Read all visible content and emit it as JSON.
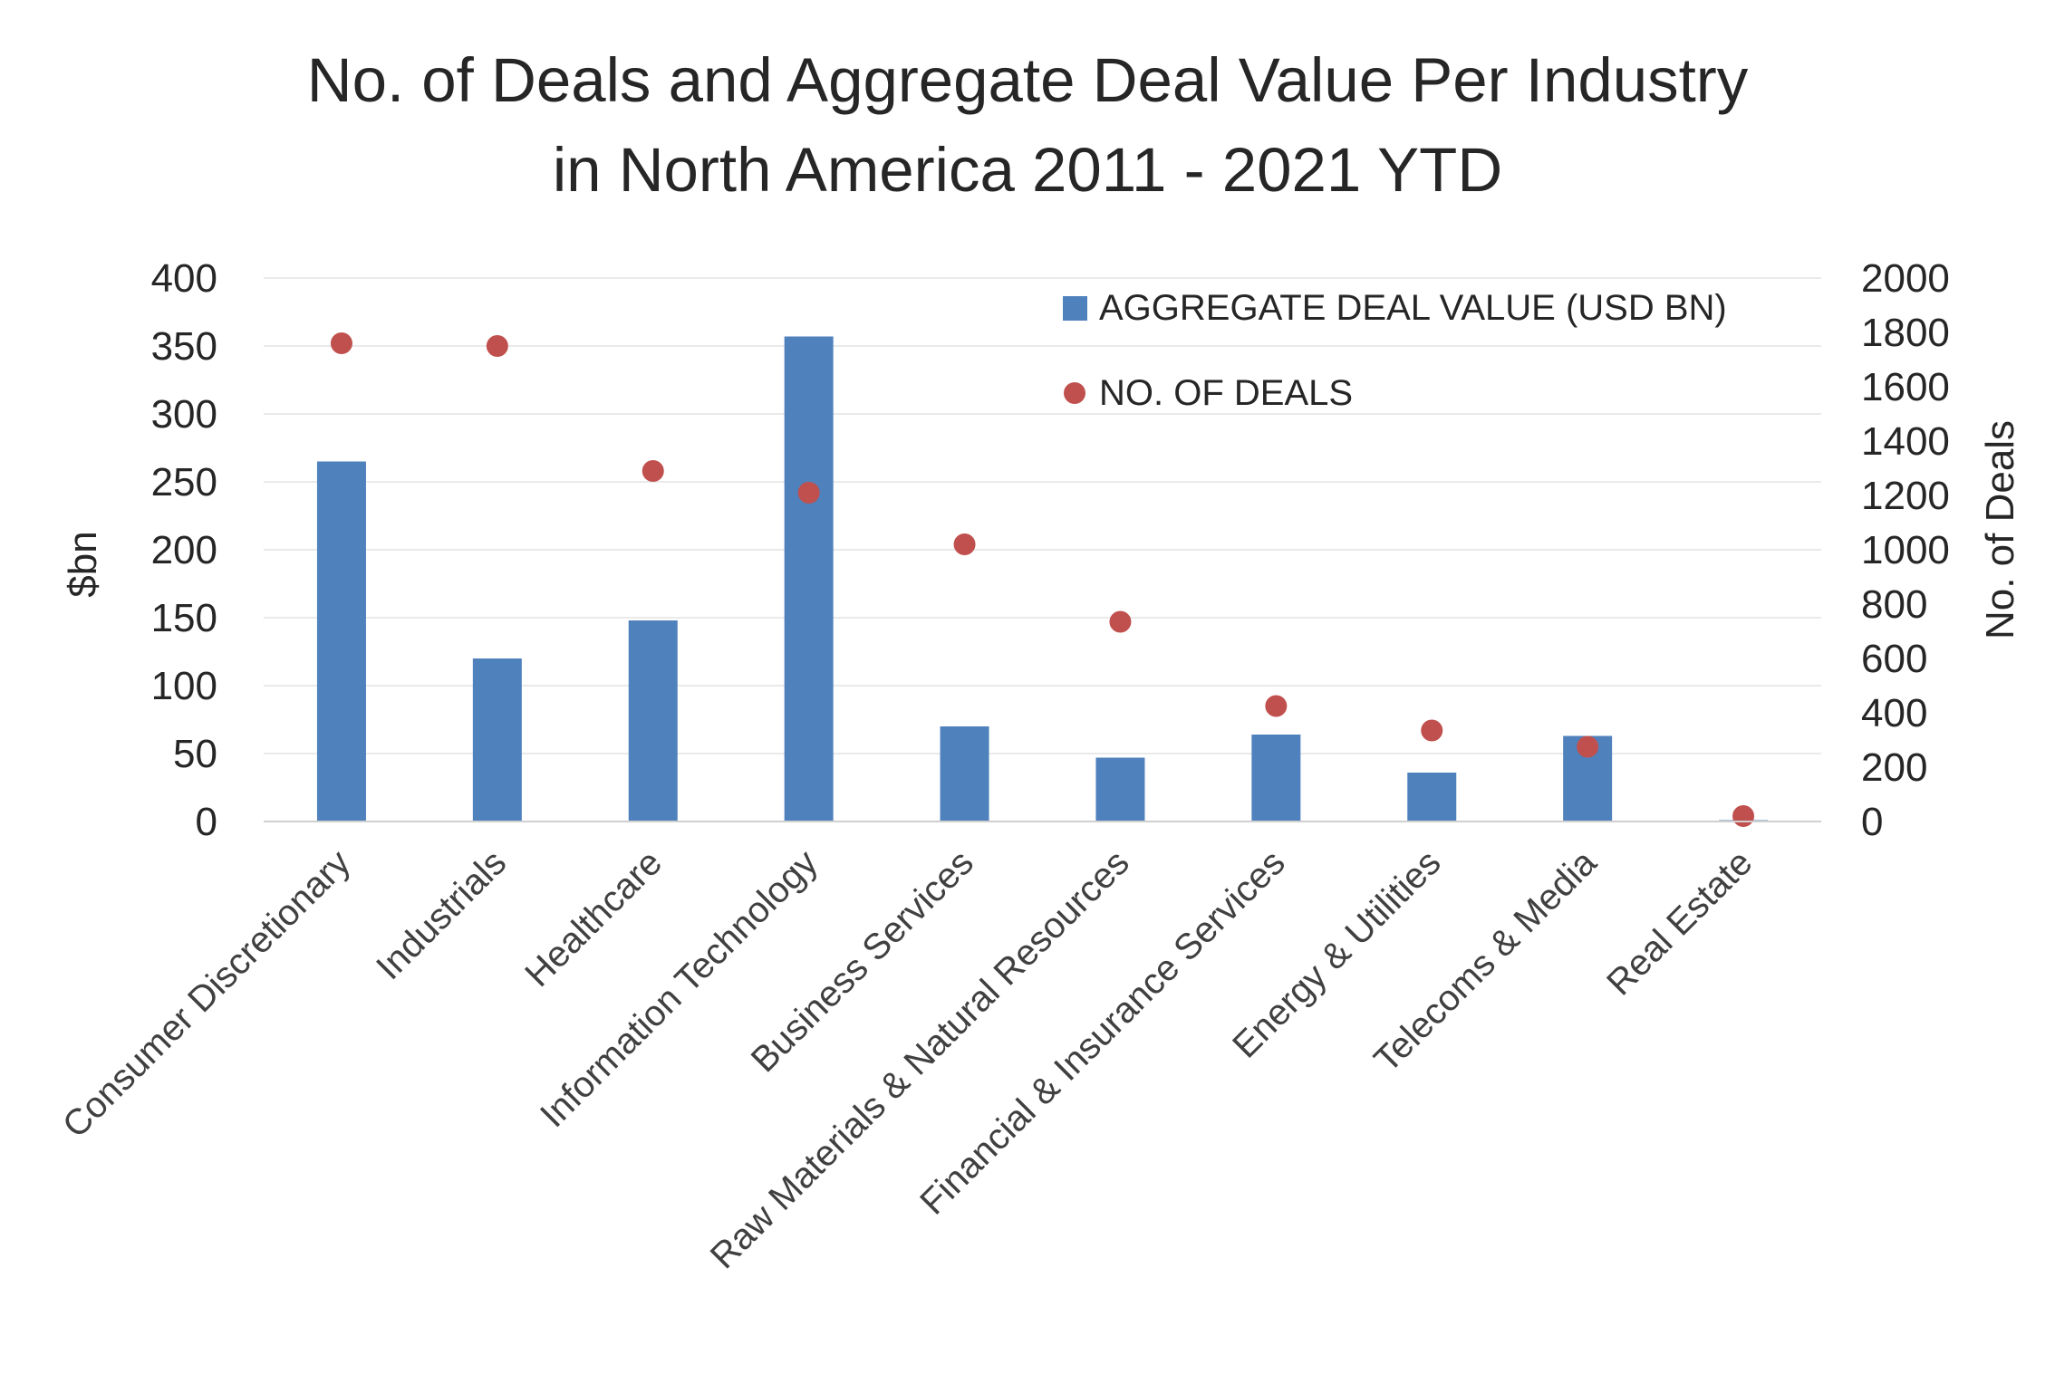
{
  "chart_data": {
    "type": "bar",
    "title_lines": [
      "No. of Deals and Aggregate Deal Value Per Industry",
      "in North America 2011 - 2021 YTD"
    ],
    "categories": [
      "Consumer Discretionary",
      "Industrials",
      "Healthcare",
      "Information Technology",
      "Business Services",
      "Raw Materials & Natural Resources",
      "Financial & Insurance Services",
      "Energy & Utilities",
      "Telecoms & Media",
      "Real Estate"
    ],
    "series": [
      {
        "name": "AGGREGATE DEAL VALUE (USD BN)",
        "type": "bar",
        "axis": "left",
        "color": "#4F81BD",
        "values": [
          265,
          120,
          148,
          357,
          70,
          47,
          64,
          36,
          63,
          1
        ]
      },
      {
        "name": "NO. OF DEALS",
        "type": "scatter",
        "axis": "right",
        "color": "#C0504D",
        "values": [
          1760,
          1750,
          1290,
          1210,
          1020,
          735,
          425,
          335,
          275,
          20
        ]
      }
    ],
    "ylabel": "$bn",
    "y2label": "No. of Deals",
    "ylim": [
      0,
      400
    ],
    "y2lim": [
      0,
      2000
    ],
    "yticks": [
      "0",
      "50",
      "100",
      "150",
      "200",
      "250",
      "300",
      "350",
      "400"
    ],
    "y2ticks": [
      "0",
      "200",
      "400",
      "600",
      "800",
      "1000",
      "1200",
      "1400",
      "1600",
      "1800",
      "2000"
    ],
    "grid": true,
    "legend_position": "top-right"
  }
}
